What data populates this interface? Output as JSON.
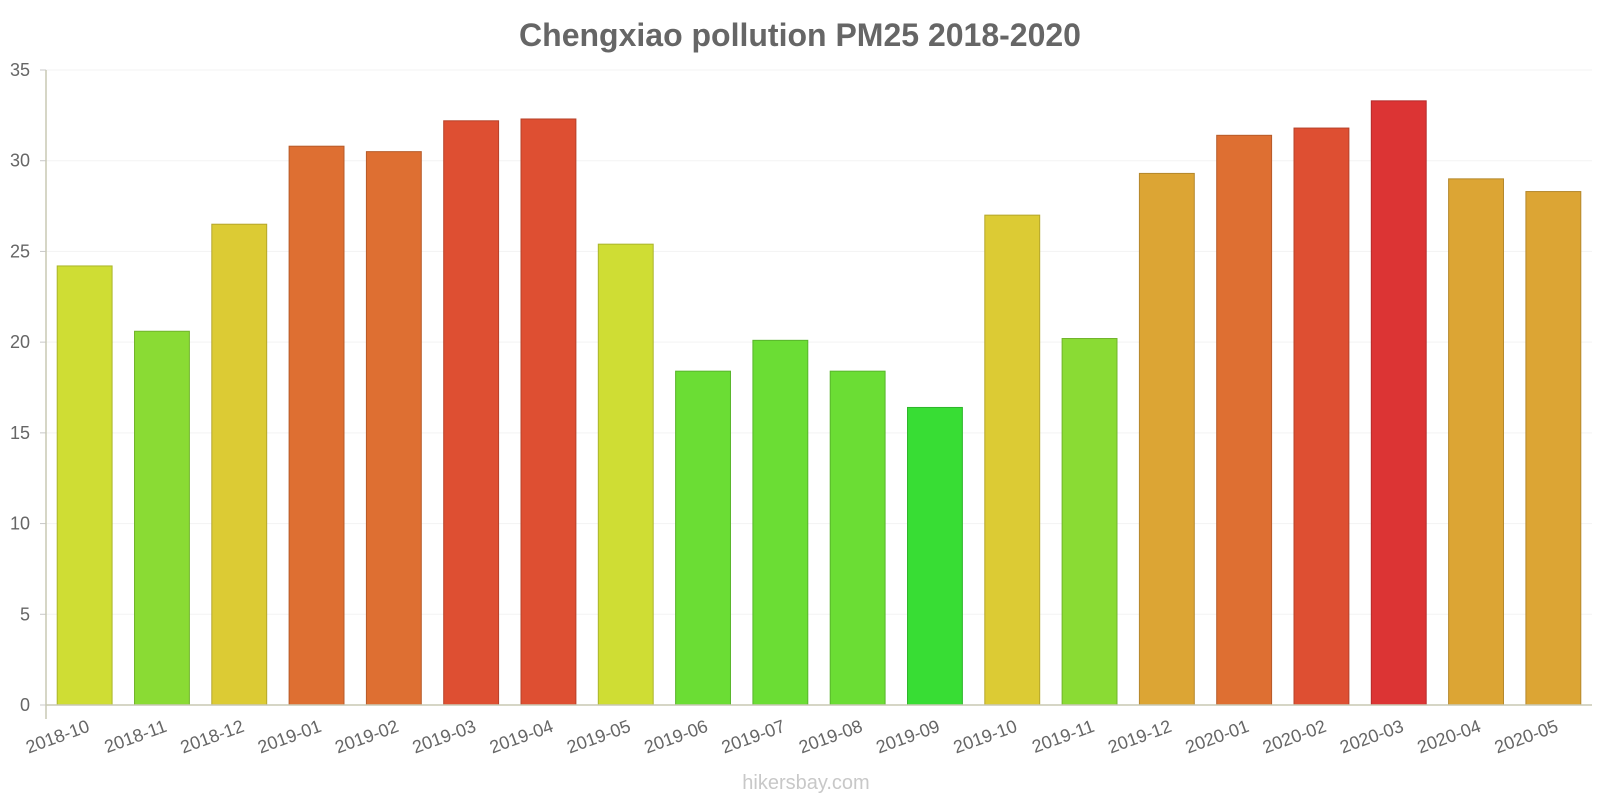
{
  "chart_data": {
    "type": "bar",
    "title": "Chengxiao pollution PM25 2018-2020",
    "xlabel": "",
    "ylabel": "",
    "ylim": [
      0,
      35
    ],
    "yticks": [
      0,
      5,
      10,
      15,
      20,
      25,
      30,
      35
    ],
    "grid": true,
    "categories": [
      "2018-10",
      "2018-11",
      "2018-12",
      "2019-01",
      "2019-02",
      "2019-03",
      "2019-04",
      "2019-05",
      "2019-06",
      "2019-07",
      "2019-08",
      "2019-09",
      "2019-10",
      "2019-11",
      "2019-12",
      "2020-01",
      "2020-02",
      "2020-03",
      "2020-04",
      "2020-05"
    ],
    "values": [
      24.2,
      20.6,
      26.5,
      30.8,
      30.5,
      32.2,
      32.3,
      25.4,
      18.4,
      20.1,
      18.4,
      16.4,
      27.0,
      20.2,
      29.3,
      31.4,
      31.8,
      33.3,
      29.0,
      28.3
    ],
    "colors": [
      "#cfdd34",
      "#8adb34",
      "#dccb34",
      "#de6f32",
      "#de6f32",
      "#de4f32",
      "#de4f32",
      "#cfdd34",
      "#6bdd34",
      "#6bdd34",
      "#6bdd34",
      "#38dd34",
      "#dccb34",
      "#8adb34",
      "#dca534",
      "#de6f32",
      "#de4f32",
      "#dc3434",
      "#dca534",
      "#dca534"
    ]
  },
  "watermark": "hikersbay.com"
}
